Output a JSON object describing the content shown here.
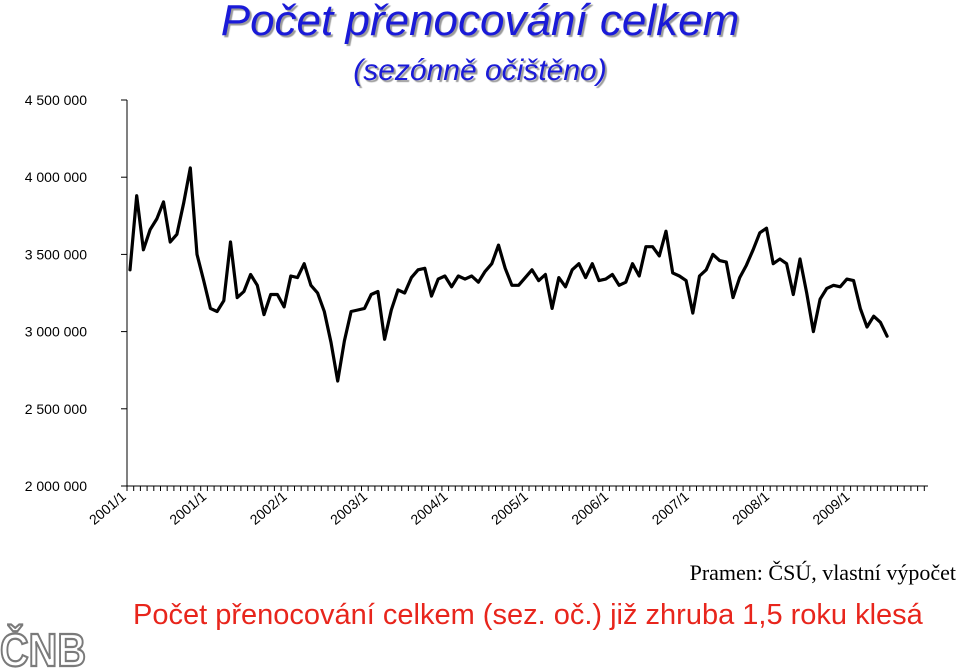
{
  "title": "Počet přenocování celkem",
  "subtitle": "(sezónně očištěno)",
  "source": "Pramen: ČSÚ, vlastní výpočet",
  "caption": "Počet přenocování celkem (sez. oč.) již zhruba 1,5 roku klesá",
  "logo_text": "ČNB",
  "colors": {
    "title": "#1a1ad8",
    "caption": "#e8251c",
    "line": "#000000",
    "logo": "#7a7a7a"
  },
  "chart_data": {
    "type": "line",
    "title": "Počet přenocování celkem",
    "subtitle": "(sezónně očištěno)",
    "xlabel": "",
    "ylabel": "",
    "ylim": [
      2000000,
      4500000
    ],
    "yticks": [
      2000000,
      2500000,
      3000000,
      3500000,
      4000000,
      4500000
    ],
    "ytick_labels": [
      "2 000 000",
      "2 500 000",
      "3 000 000",
      "3 500 000",
      "4 000 000",
      "4 500 000"
    ],
    "xtick_labels": [
      "2001/1",
      "2001/1",
      "2002/1",
      "2003/1",
      "2004/1",
      "2005/1",
      "2006/1",
      "2007/1",
      "2008/1",
      "2009/1"
    ],
    "xtick_indices": [
      -15,
      -3,
      9,
      21,
      33,
      45,
      57,
      69,
      81,
      93
    ],
    "grid": false,
    "series": [
      {
        "name": "",
        "values": [
          3400000,
          3880000,
          3530000,
          3660000,
          3730000,
          3840000,
          3580000,
          3630000,
          3830000,
          4060000,
          3500000,
          3330000,
          3150000,
          3130000,
          3200000,
          3580000,
          3220000,
          3260000,
          3370000,
          3300000,
          3110000,
          3240000,
          3240000,
          3160000,
          3360000,
          3350000,
          3440000,
          3300000,
          3250000,
          3130000,
          2930000,
          2680000,
          2940000,
          3130000,
          3140000,
          3150000,
          3240000,
          3260000,
          2950000,
          3140000,
          3270000,
          3250000,
          3350000,
          3400000,
          3410000,
          3230000,
          3340000,
          3360000,
          3290000,
          3360000,
          3340000,
          3360000,
          3320000,
          3390000,
          3440000,
          3560000,
          3410000,
          3300000,
          3300000,
          3350000,
          3400000,
          3330000,
          3370000,
          3150000,
          3350000,
          3290000,
          3400000,
          3440000,
          3350000,
          3440000,
          3330000,
          3340000,
          3370000,
          3300000,
          3320000,
          3440000,
          3360000,
          3550000,
          3550000,
          3490000,
          3650000,
          3380000,
          3360000,
          3330000,
          3120000,
          3360000,
          3400000,
          3500000,
          3460000,
          3450000,
          3220000,
          3350000,
          3430000,
          3530000,
          3640000,
          3670000,
          3440000,
          3470000,
          3440000,
          3240000,
          3470000,
          3250000,
          3000000,
          3210000,
          3280000,
          3300000,
          3290000,
          3340000,
          3330000,
          3150000,
          3030000,
          3100000,
          3060000,
          2970000
        ]
      }
    ]
  }
}
